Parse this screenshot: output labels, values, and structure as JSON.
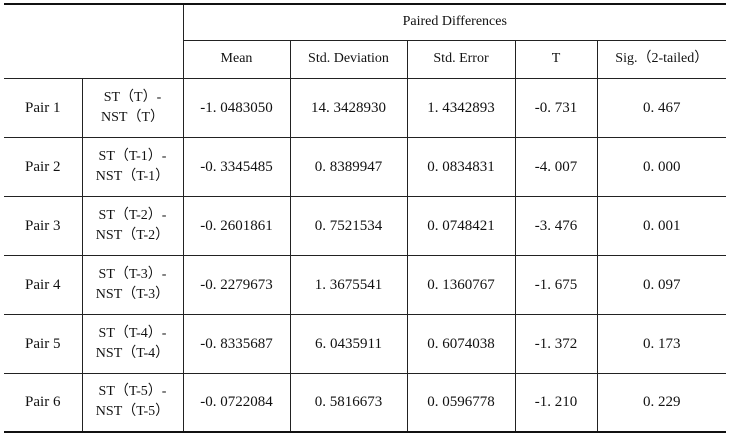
{
  "table": {
    "group_header": "Paired Differences",
    "columns": [
      "Mean",
      "Std. Deviation",
      "Std. Error",
      "T",
      "Sig.（2-tailed）"
    ],
    "rows": [
      {
        "pair": "Pair 1",
        "var_top": "ST（T）-",
        "var_bottom": "NST（T）",
        "mean": "-1. 0483050",
        "std_dev": "14. 3428930",
        "std_err": "1. 4342893",
        "t": "-0. 731",
        "sig": "0. 467"
      },
      {
        "pair": "Pair 2",
        "var_top": "ST（T-1）-",
        "var_bottom": "NST（T-1）",
        "mean": "-0. 3345485",
        "std_dev": "0. 8389947",
        "std_err": "0. 0834831",
        "t": "-4. 007",
        "sig": "0. 000"
      },
      {
        "pair": "Pair 3",
        "var_top": "ST（T-2）-",
        "var_bottom": "NST（T-2）",
        "mean": "-0. 2601861",
        "std_dev": "0. 7521534",
        "std_err": "0. 0748421",
        "t": "-3. 476",
        "sig": "0. 001"
      },
      {
        "pair": "Pair 4",
        "var_top": "ST（T-3）-",
        "var_bottom": "NST（T-3）",
        "mean": "-0. 2279673",
        "std_dev": "1. 3675541",
        "std_err": "0. 1360767",
        "t": "-1. 675",
        "sig": "0. 097"
      },
      {
        "pair": "Pair 5",
        "var_top": "ST（T-4）-",
        "var_bottom": "NST（T-4）",
        "mean": "-0. 8335687",
        "std_dev": "6. 0435911",
        "std_err": "0. 6074038",
        "t": "-1. 372",
        "sig": "0. 173"
      },
      {
        "pair": "Pair 6",
        "var_top": "ST（T-5）-",
        "var_bottom": "NST（T-5）",
        "mean": "-0. 0722084",
        "std_dev": "0. 5816673",
        "std_err": "0. 0596778",
        "t": "-1. 210",
        "sig": "0. 229"
      }
    ]
  }
}
